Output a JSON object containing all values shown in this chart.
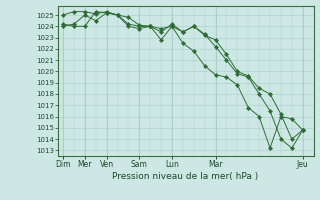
{
  "xlabel": "Pression niveau de la mer( hPa )",
  "bg_color": "#cde8e4",
  "grid_color": "#a8ccca",
  "line_color": "#2d6b35",
  "marker_color": "#2d6b35",
  "ylim": [
    1012.5,
    1025.8
  ],
  "yticks": [
    1013,
    1014,
    1015,
    1016,
    1017,
    1018,
    1019,
    1020,
    1021,
    1022,
    1023,
    1024,
    1025
  ],
  "x_tick_labels_display": [
    "Dim",
    "Mer",
    "Ven",
    "Sam",
    "Lun",
    "Mar",
    "Jeu"
  ],
  "x_tick_positions": [
    0,
    2,
    4,
    7,
    10,
    14,
    22
  ],
  "xlim": [
    -0.5,
    23
  ],
  "series1_x": [
    0,
    1,
    2,
    3,
    4,
    5,
    6,
    7,
    8,
    9,
    10,
    11,
    12,
    13,
    14,
    15,
    16,
    17,
    18,
    19,
    20,
    21,
    22
  ],
  "series1_y": [
    1025.0,
    1025.3,
    1025.3,
    1025.1,
    1025.3,
    1025.0,
    1024.8,
    1024.1,
    1024.0,
    1023.8,
    1024.0,
    1023.5,
    1024.0,
    1023.2,
    1022.8,
    1021.5,
    1020.0,
    1019.6,
    1018.5,
    1018.0,
    1016.2,
    1014.0,
    1014.8
  ],
  "series2_x": [
    0,
    1,
    2,
    3,
    4,
    5,
    6,
    7,
    8,
    9,
    10,
    11,
    12,
    13,
    14,
    15,
    16,
    17,
    18,
    19,
    20,
    21,
    22
  ],
  "series2_y": [
    1024.2,
    1024.0,
    1024.0,
    1025.3,
    1025.2,
    1025.0,
    1024.2,
    1024.0,
    1024.0,
    1023.5,
    1024.2,
    1023.5,
    1024.0,
    1023.3,
    1022.2,
    1021.0,
    1019.8,
    1019.5,
    1018.0,
    1016.5,
    1014.0,
    1013.2,
    1014.8
  ],
  "series3_x": [
    0,
    1,
    2,
    3,
    4,
    5,
    6,
    7,
    8,
    9,
    10,
    11,
    12,
    13,
    14,
    15,
    16,
    17,
    18,
    19,
    20,
    21,
    22
  ],
  "series3_y": [
    1024.0,
    1024.2,
    1025.0,
    1024.5,
    1025.2,
    1025.0,
    1024.0,
    1023.8,
    1024.0,
    1022.8,
    1024.0,
    1022.5,
    1021.8,
    1020.5,
    1019.7,
    1019.5,
    1018.8,
    1016.8,
    1016.0,
    1013.2,
    1016.0,
    1015.8,
    1014.8
  ]
}
